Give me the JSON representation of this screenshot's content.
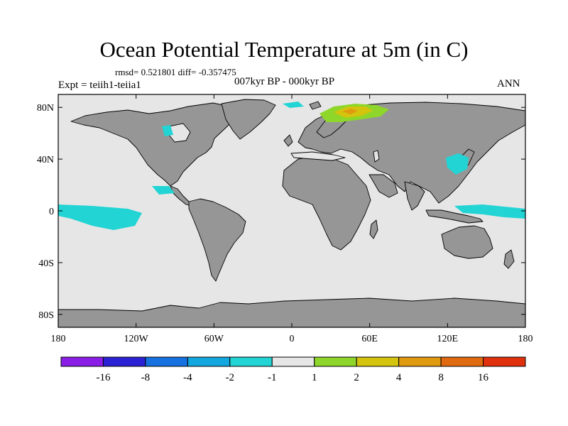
{
  "title": "Ocean Potential Temperature at 5m (in C)",
  "stats": "rmsd= 0.521801  diff= -0.357475",
  "experiment": "Expt = teiih1-teiia1",
  "period": "007kyr BP - 000kyr BP",
  "season": "ANN",
  "map": {
    "lon_range": [
      -180,
      180
    ],
    "lat_range": [
      -90,
      90
    ],
    "lat_ticks": [
      "80N",
      "40N",
      "0",
      "40S",
      "80S"
    ],
    "lat_tick_values": [
      80,
      40,
      0,
      -40,
      -80
    ],
    "lon_ticks": [
      "180",
      "120W",
      "60W",
      "0",
      "60E",
      "120E",
      "180"
    ],
    "lon_tick_values": [
      -180,
      -120,
      -60,
      0,
      60,
      120,
      180
    ],
    "land_color": "#969696",
    "ocean_color": "#e6e6e6",
    "coastline_color": "#000000"
  },
  "colorbar": {
    "labels": [
      "-16",
      "-8",
      "-4",
      "-2",
      "-1",
      "1",
      "2",
      "4",
      "8",
      "16"
    ],
    "colors": [
      "#8a1ee6",
      "#2b22d6",
      "#1572e0",
      "#13a7e0",
      "#22d4d4",
      "#e6e6e6",
      "#8ed62a",
      "#d4c40e",
      "#e09a10",
      "#e06a10",
      "#e0300e"
    ]
  }
}
